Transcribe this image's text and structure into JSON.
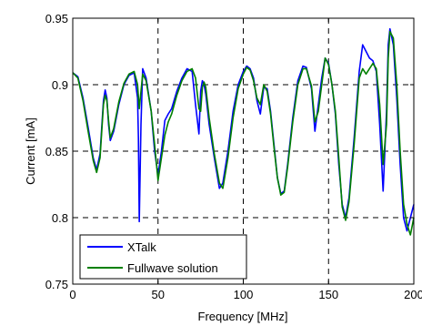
{
  "chart_data": {
    "type": "line",
    "xlabel": "Frequency [MHz]",
    "ylabel": "Current [mA]",
    "xlim": [
      0,
      200
    ],
    "ylim": [
      0.75,
      0.95
    ],
    "xticks": [
      0,
      50,
      100,
      150,
      200
    ],
    "yticks": [
      0.75,
      0.8,
      0.85,
      0.9,
      0.95
    ],
    "xtick_labels": [
      "0",
      "50",
      "100",
      "150",
      "200"
    ],
    "ytick_labels": [
      "0.75",
      "0.8",
      "0.85",
      "0.9",
      "0.95"
    ],
    "grid": "dashed, major ticks",
    "legend_position": "bottom-left",
    "series": [
      {
        "name": "XTalk",
        "color": "#0000ff",
        "x": [
          0,
          3,
          6,
          9,
          12,
          14,
          16,
          18,
          19,
          20,
          21,
          22,
          24,
          27,
          30,
          33,
          36,
          38,
          38.5,
          39,
          40,
          41,
          43,
          46,
          48,
          50,
          52,
          54,
          56,
          58,
          61,
          64,
          67,
          70,
          72,
          74,
          75,
          76,
          77,
          78,
          80,
          83,
          86,
          88,
          91,
          94,
          97,
          100,
          102,
          104,
          106,
          108,
          110,
          112,
          114,
          116,
          118,
          120,
          122,
          124,
          126,
          129,
          132,
          135,
          137,
          140,
          142,
          144,
          146,
          148,
          150,
          152,
          154,
          156,
          158,
          160,
          162,
          165,
          168,
          170,
          172,
          174,
          176,
          178,
          180,
          182,
          184,
          185,
          186,
          188,
          190,
          192,
          194,
          196,
          198,
          200
        ],
        "values": [
          0.909,
          0.906,
          0.89,
          0.868,
          0.845,
          0.836,
          0.848,
          0.888,
          0.896,
          0.89,
          0.87,
          0.858,
          0.865,
          0.885,
          0.9,
          0.907,
          0.909,
          0.89,
          0.86,
          0.797,
          0.87,
          0.912,
          0.905,
          0.88,
          0.85,
          0.832,
          0.85,
          0.873,
          0.878,
          0.882,
          0.895,
          0.905,
          0.912,
          0.91,
          0.885,
          0.863,
          0.895,
          0.903,
          0.9,
          0.893,
          0.87,
          0.845,
          0.822,
          0.826,
          0.85,
          0.88,
          0.9,
          0.91,
          0.914,
          0.912,
          0.905,
          0.888,
          0.878,
          0.898,
          0.897,
          0.88,
          0.855,
          0.83,
          0.818,
          0.82,
          0.84,
          0.875,
          0.903,
          0.914,
          0.913,
          0.897,
          0.865,
          0.885,
          0.905,
          0.92,
          0.916,
          0.9,
          0.878,
          0.84,
          0.81,
          0.8,
          0.815,
          0.86,
          0.91,
          0.93,
          0.925,
          0.92,
          0.918,
          0.91,
          0.87,
          0.82,
          0.88,
          0.93,
          0.942,
          0.93,
          0.89,
          0.84,
          0.8,
          0.79,
          0.8,
          0.81
        ]
      },
      {
        "name": "Fullwave solution",
        "color": "#008000",
        "x": [
          0,
          3,
          6,
          9,
          12,
          14,
          16,
          18,
          19,
          20,
          21,
          22,
          24,
          27,
          30,
          33,
          36,
          38,
          39,
          40,
          41,
          43,
          46,
          48,
          50,
          52,
          54,
          56,
          58,
          61,
          64,
          67,
          70,
          72,
          74,
          75,
          76,
          77,
          78,
          80,
          83,
          86,
          88,
          91,
          94,
          97,
          100,
          102,
          104,
          106,
          108,
          110,
          112,
          114,
          116,
          118,
          120,
          122,
          124,
          126,
          129,
          132,
          135,
          137,
          140,
          142,
          144,
          146,
          148,
          150,
          152,
          154,
          156,
          158,
          160,
          162,
          165,
          168,
          170,
          172,
          174,
          176,
          178,
          180,
          182,
          184,
          185,
          186,
          188,
          190,
          192,
          194,
          196,
          198,
          200
        ],
        "values": [
          0.909,
          0.905,
          0.888,
          0.865,
          0.843,
          0.834,
          0.845,
          0.885,
          0.892,
          0.888,
          0.873,
          0.86,
          0.867,
          0.887,
          0.901,
          0.908,
          0.91,
          0.9,
          0.882,
          0.895,
          0.908,
          0.903,
          0.88,
          0.855,
          0.828,
          0.845,
          0.862,
          0.872,
          0.878,
          0.892,
          0.903,
          0.91,
          0.912,
          0.905,
          0.882,
          0.88,
          0.898,
          0.902,
          0.898,
          0.875,
          0.848,
          0.826,
          0.822,
          0.845,
          0.875,
          0.897,
          0.908,
          0.913,
          0.911,
          0.903,
          0.89,
          0.885,
          0.9,
          0.895,
          0.878,
          0.853,
          0.83,
          0.817,
          0.819,
          0.838,
          0.872,
          0.9,
          0.912,
          0.912,
          0.899,
          0.872,
          0.88,
          0.9,
          0.92,
          0.915,
          0.9,
          0.88,
          0.845,
          0.808,
          0.798,
          0.812,
          0.855,
          0.905,
          0.912,
          0.908,
          0.912,
          0.916,
          0.912,
          0.885,
          0.84,
          0.87,
          0.92,
          0.94,
          0.935,
          0.9,
          0.85,
          0.81,
          0.795,
          0.787,
          0.8
        ]
      }
    ]
  }
}
